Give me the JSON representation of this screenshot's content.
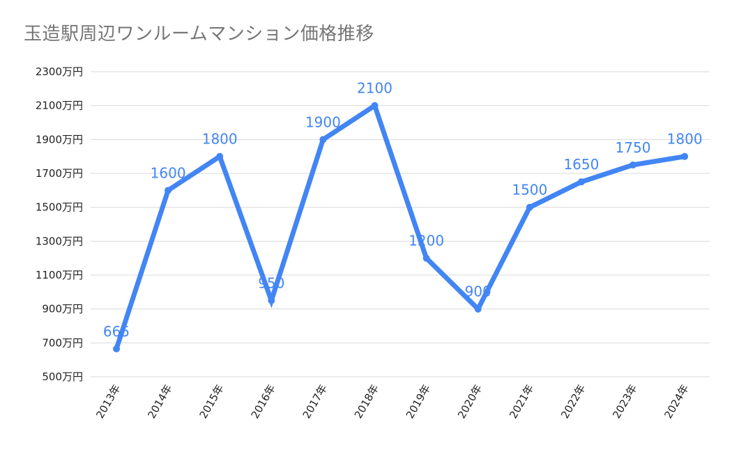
{
  "chart_data": {
    "type": "line",
    "title": "玉造駅周辺ワンルームマンション価格推移",
    "xlabel": "",
    "ylabel": "",
    "categories": [
      "2013年",
      "2014年",
      "2015年",
      "2016年",
      "2017年",
      "2018年",
      "2019年",
      "2020年",
      "2021年",
      "2022年",
      "2023年",
      "2024年"
    ],
    "series": [
      {
        "values": [
          665,
          1600,
          1800,
          950,
          1900,
          2100,
          1200,
          900,
          1500,
          1650,
          1750,
          1800
        ],
        "data_labels": [
          "665",
          "1600",
          "1800",
          "950",
          "1900",
          "2100",
          "1200",
          "900",
          "1500",
          "1650",
          "1750",
          "1800"
        ],
        "color": "#4285f4"
      }
    ],
    "y_ticks": [
      500,
      700,
      900,
      1100,
      1300,
      1500,
      1700,
      1900,
      2100,
      2300
    ],
    "y_tick_labels": [
      "500万円",
      "700万円",
      "900万円",
      "1100万円",
      "1300万円",
      "1500万円",
      "1700万円",
      "1900万円",
      "2100万円",
      "2300万円"
    ],
    "ylim": [
      500,
      2300
    ],
    "grid": true,
    "legend": "none",
    "colors": {
      "series": "#4285f4",
      "title": "#757575",
      "axis_text": "#222222",
      "grid": "#d9d9d9"
    }
  }
}
